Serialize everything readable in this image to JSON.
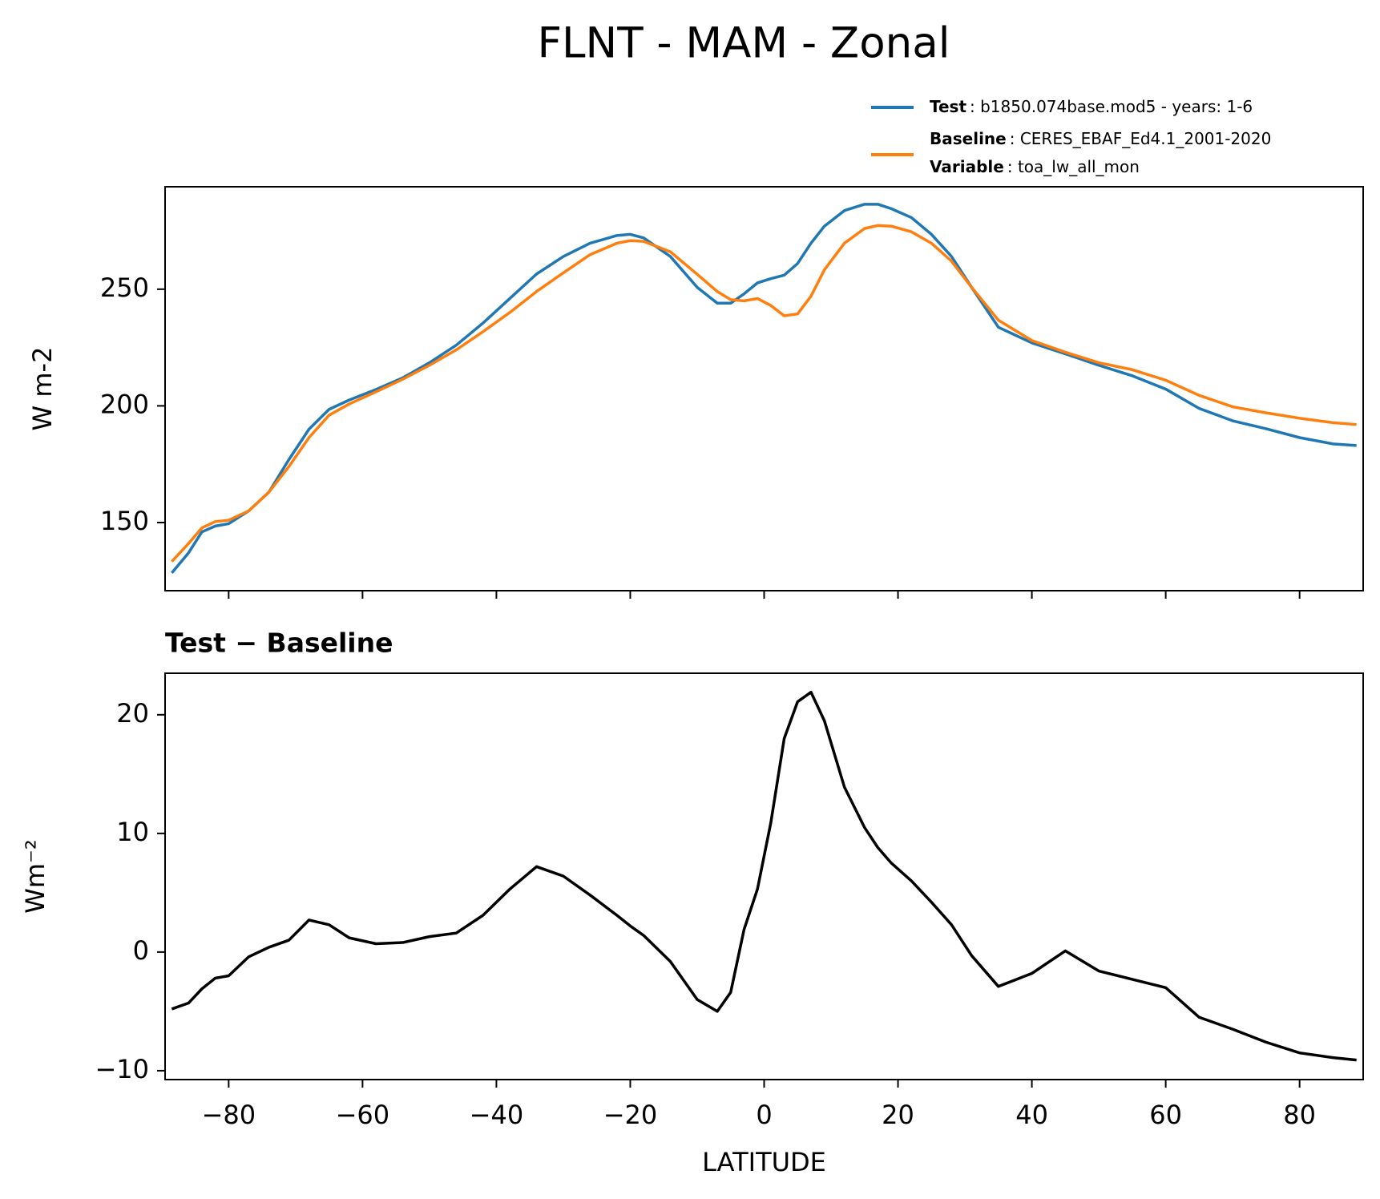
{
  "title": "FLNT - MAM - Zonal",
  "chart_data": [
    {
      "type": "line",
      "ylabel": "W m-2",
      "xlim": [
        -89.5,
        89.5
      ],
      "ylim": [
        120.8,
        293.9
      ],
      "xticks": [
        -80,
        -60,
        -40,
        -20,
        0,
        20,
        40,
        60,
        80
      ],
      "xticklabels": false,
      "yticks": [
        150,
        200,
        250
      ],
      "x": [
        -88.5,
        -86,
        -84,
        -82,
        -80,
        -77,
        -74,
        -71,
        -68,
        -65,
        -62,
        -58,
        -54,
        -50,
        -46,
        -42,
        -38,
        -34,
        -30,
        -26,
        -22,
        -20,
        -18,
        -14,
        -10,
        -7,
        -5,
        -3,
        -1,
        1,
        3,
        5,
        7,
        9,
        12,
        15,
        17,
        19,
        22,
        25,
        28,
        31,
        35,
        40,
        45,
        50,
        55,
        60,
        65,
        70,
        75,
        80,
        85,
        88.5
      ],
      "series": [
        {
          "name": "Test",
          "description": ": b1850.074base.mod5 - years: 1-6",
          "color": "#1f77b4",
          "values": [
            128.4,
            137,
            146,
            148.5,
            149.5,
            155,
            163,
            177,
            190,
            198.5,
            202.5,
            207,
            212,
            218.5,
            226,
            235.5,
            246,
            256.5,
            264,
            269.7,
            273,
            273.5,
            272,
            264,
            250.8,
            244,
            244,
            248,
            252.7,
            254.5,
            256,
            261,
            269.7,
            277,
            283.7,
            286.4,
            286.4,
            284.5,
            280.7,
            273.5,
            264,
            250.8,
            233.7,
            227,
            222.3,
            217.4,
            212.9,
            207.2,
            198.9,
            193.6,
            190.2,
            186.4,
            183.7,
            183
          ]
        },
        {
          "name": "Baseline",
          "description": ": CERES_EBAF_Ed4.1_2001-2020",
          "color": "#ff7f0e",
          "values": [
            133.3,
            141,
            147.7,
            150.4,
            151,
            155,
            163,
            174,
            186.4,
            196,
            200.8,
            206,
            211.4,
            217.4,
            224,
            231.8,
            240,
            249,
            257,
            264.8,
            269.7,
            270.8,
            270.5,
            266,
            256.4,
            249,
            245.5,
            245,
            246,
            243,
            238.6,
            239.4,
            247,
            258.3,
            269.7,
            276,
            277.3,
            277,
            274.6,
            269.7,
            262,
            250.8,
            236.7,
            228,
            223,
            218.5,
            215.5,
            211,
            204.5,
            199.6,
            197,
            194.7,
            192.8,
            192
          ]
        }
      ],
      "variable": {
        "name": "Variable",
        "description": ": toa_lw_all_mon"
      }
    },
    {
      "type": "line",
      "title": "Test − Baseline",
      "xlabel": "LATITUDE",
      "ylabel": "Wm⁻²",
      "xlim": [
        -89.5,
        89.5
      ],
      "ylim": [
        -10.75,
        23.5
      ],
      "xticks": [
        {
          "value": -80,
          "label": "−80"
        },
        {
          "value": -60,
          "label": "−60"
        },
        {
          "value": -40,
          "label": "−40"
        },
        {
          "value": -20,
          "label": "−20"
        },
        0,
        20,
        40,
        60,
        80
      ],
      "xticklabels": true,
      "yticks": [
        {
          "value": -10,
          "label": "−10"
        },
        0,
        10,
        20
      ],
      "x": [
        -88.5,
        -86,
        -84,
        -82,
        -80,
        -77,
        -74,
        -71,
        -68,
        -65,
        -62,
        -58,
        -54,
        -50,
        -46,
        -42,
        -38,
        -34,
        -30,
        -26,
        -22,
        -20,
        -18,
        -14,
        -10,
        -7,
        -5,
        -3,
        -1,
        1,
        3,
        5,
        7,
        9,
        12,
        15,
        17,
        19,
        22,
        25,
        28,
        31,
        35,
        40,
        45,
        50,
        55,
        60,
        65,
        70,
        75,
        80,
        85,
        88.5
      ],
      "series": [
        {
          "color": "#000000",
          "values": [
            -4.8,
            -4.3,
            -3.1,
            -2.2,
            -2,
            -0.4,
            0.4,
            1,
            2.7,
            2.3,
            1.2,
            0.7,
            0.8,
            1.3,
            1.6,
            3.1,
            5.3,
            7.2,
            6.4,
            4.8,
            3.1,
            2.2,
            1.4,
            -0.8,
            -4,
            -5,
            -3.4,
            1.9,
            5.3,
            10.9,
            18,
            21.1,
            21.9,
            19.5,
            13.9,
            10.5,
            8.8,
            7.5,
            6,
            4.2,
            2.3,
            -0.3,
            -2.9,
            -1.8,
            0.1,
            -1.6,
            -2.3,
            -3,
            -5.5,
            -6.5,
            -7.6,
            -8.5,
            -8.9,
            -9.1
          ]
        }
      ]
    }
  ]
}
